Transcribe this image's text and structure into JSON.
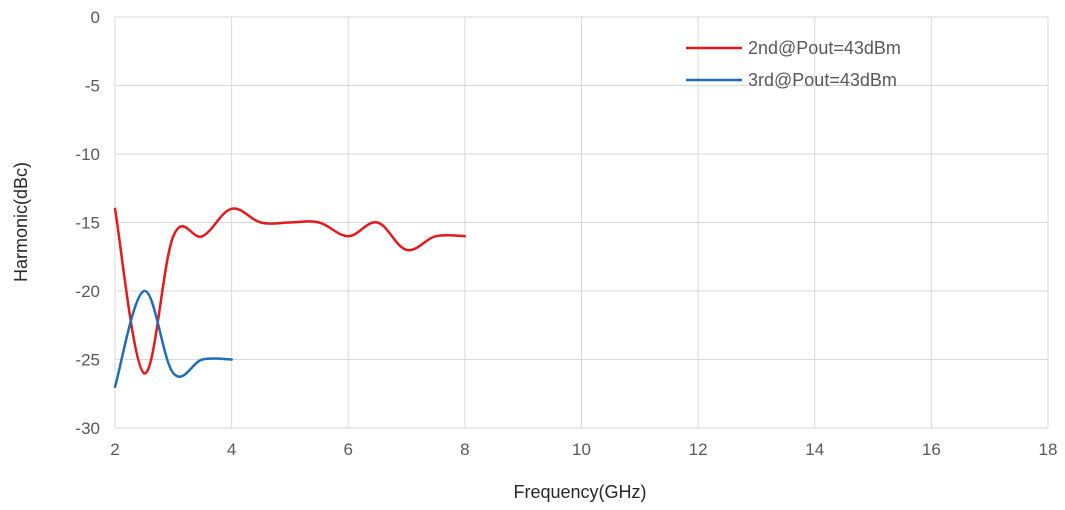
{
  "chart_data": {
    "type": "line",
    "title": "",
    "xlabel": "Frequency(GHz)",
    "ylabel": "Harmonic(dBc)",
    "xlim": [
      2,
      18
    ],
    "ylim": [
      -30,
      0
    ],
    "xticks": [
      "2",
      "4",
      "6",
      "8",
      "10",
      "12",
      "14",
      "16",
      "18"
    ],
    "yticks": [
      "0",
      "-5",
      "-10",
      "-15",
      "-20",
      "-25",
      "-30"
    ],
    "grid": true,
    "legend_position": "top-right",
    "series": [
      {
        "name": "2nd@Pout=43dBm",
        "color": "#e31a1c",
        "x": [
          2,
          2.5,
          3,
          3.5,
          4,
          4.5,
          5,
          5.5,
          6,
          6.5,
          7,
          7.5,
          8
        ],
        "y": [
          -14,
          -26,
          -16,
          -16,
          -14,
          -15,
          -15,
          -15,
          -16,
          -15,
          -17,
          -16,
          -16
        ]
      },
      {
        "name": "3rd@Pout=43dBm",
        "color": "#1f6db5",
        "x": [
          2,
          2.5,
          3,
          3.5,
          4
        ],
        "y": [
          -27,
          -20,
          -26,
          -25,
          -25
        ]
      }
    ]
  }
}
